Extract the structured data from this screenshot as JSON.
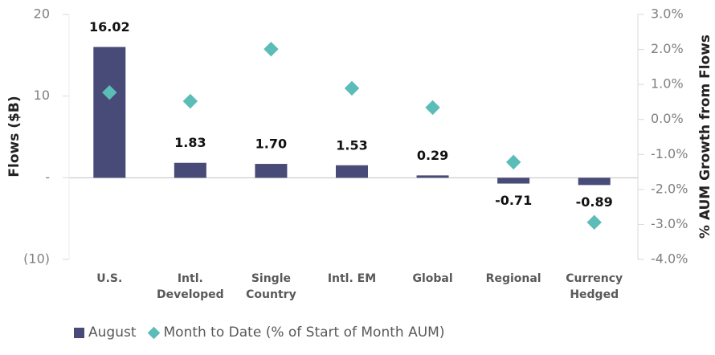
{
  "chart_data": {
    "type": "bar",
    "categories": [
      "U.S.",
      "Intl. Developed",
      "Single Country",
      "Intl. EM",
      "Global",
      "Regional",
      "Currency Hedged"
    ],
    "series": [
      {
        "name": "August",
        "type": "bar",
        "color": "#484a78",
        "values": [
          16.02,
          1.83,
          1.7,
          1.53,
          0.29,
          -0.71,
          -0.89
        ],
        "value_labels": [
          "16.02",
          "1.83",
          "1.70",
          "1.53",
          "0.29",
          "-0.71",
          "-0.89"
        ]
      },
      {
        "name": "Month to Date (% of Start of Month AUM)",
        "type": "scatter",
        "axis": "y2",
        "color": "#5bbcb8",
        "values": [
          0.77,
          0.52,
          2.01,
          0.89,
          0.34,
          -1.22,
          -2.94
        ]
      }
    ],
    "ylabel": "Flows ($B)",
    "y2label": "% AUM Growth from Flows",
    "ylim": [
      -10,
      20
    ],
    "yticks": [
      {
        "value": -10,
        "label": "(10)"
      },
      {
        "value": 0,
        "label": "-"
      },
      10,
      20
    ],
    "y2lim": [
      -4,
      3
    ],
    "y2ticks": [
      {
        "value": -4,
        "label": "-4.0%"
      },
      {
        "value": -3,
        "label": "-3.0%"
      },
      {
        "value": -2,
        "label": "-2.0%"
      },
      {
        "value": -1,
        "label": "-1.0%"
      },
      {
        "value": 0,
        "label": "0.0%"
      },
      {
        "value": 1,
        "label": "1.0%"
      },
      {
        "value": 2,
        "label": "2.0%"
      },
      {
        "value": 3,
        "label": "3.0%"
      }
    ],
    "legend": "bottom"
  }
}
